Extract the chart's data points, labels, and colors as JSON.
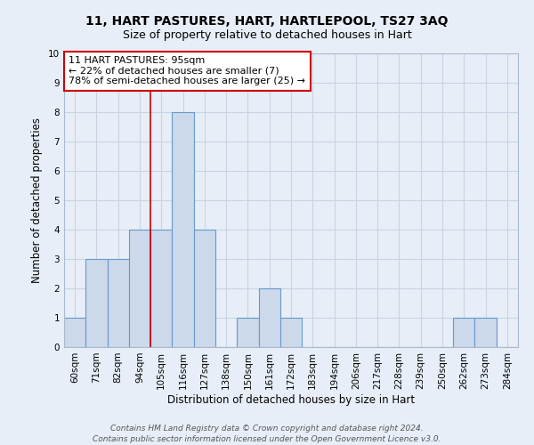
{
  "title": "11, HART PASTURES, HART, HARTLEPOOL, TS27 3AQ",
  "subtitle": "Size of property relative to detached houses in Hart",
  "xlabel": "Distribution of detached houses by size in Hart",
  "ylabel": "Number of detached properties",
  "bin_labels": [
    "60sqm",
    "71sqm",
    "82sqm",
    "94sqm",
    "105sqm",
    "116sqm",
    "127sqm",
    "138sqm",
    "150sqm",
    "161sqm",
    "172sqm",
    "183sqm",
    "194sqm",
    "206sqm",
    "217sqm",
    "228sqm",
    "239sqm",
    "250sqm",
    "262sqm",
    "273sqm",
    "284sqm"
  ],
  "bar_heights": [
    1,
    3,
    3,
    4,
    4,
    8,
    4,
    0,
    1,
    2,
    1,
    0,
    0,
    0,
    0,
    0,
    0,
    0,
    1,
    1,
    0
  ],
  "bar_color": "#ccd9ea",
  "bar_edge_color": "#6699cc",
  "grid_color": "#c8d4e4",
  "background_color": "#e8eef7",
  "ylim_max": 10,
  "red_line_x": 3.5,
  "annotation_line1": "11 HART PASTURES: 95sqm",
  "annotation_line2": "← 22% of detached houses are smaller (7)",
  "annotation_line3": "78% of semi-detached houses are larger (25) →",
  "annotation_box_color": "#ffffff",
  "annotation_box_edge": "#cc0000",
  "footer_line1": "Contains HM Land Registry data © Crown copyright and database right 2024.",
  "footer_line2": "Contains public sector information licensed under the Open Government Licence v3.0.",
  "title_fontsize": 10,
  "subtitle_fontsize": 9,
  "xlabel_fontsize": 8.5,
  "ylabel_fontsize": 8.5,
  "tick_fontsize": 7.5,
  "annotation_fontsize": 8,
  "footer_fontsize": 6.5
}
